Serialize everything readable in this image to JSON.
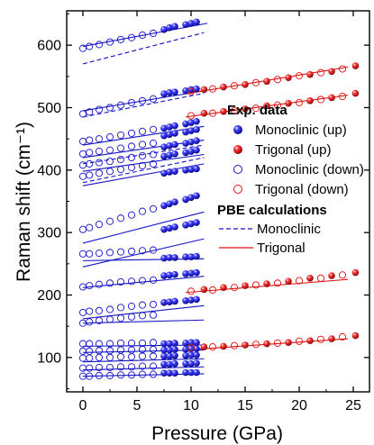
{
  "chart_data": {
    "type": "scatter",
    "xlabel": "Pressure (GPa)",
    "ylabel": "Raman shift (cm⁻¹)",
    "xlim": [
      -1.5,
      26.5
    ],
    "ylim": [
      45,
      655
    ],
    "xticks": [
      0,
      5,
      10,
      15,
      20,
      25
    ],
    "yticks": [
      100,
      200,
      300,
      400,
      500,
      600
    ],
    "grid": false,
    "legend_position": "right",
    "legend": {
      "exp_heading": "Exp. data",
      "calc_heading": "PBE calculations",
      "mono_up": "Monoclinic (up)",
      "trig_up": "Trigonal (up)",
      "mono_down": "Monoclinic (down)",
      "trig_down": "Trigonal  (down)",
      "calc_mono": "Monoclinic",
      "calc_trig": "Trigonal"
    },
    "colors": {
      "monoclinic": "#1515c8",
      "trigonal": "#e01010"
    },
    "series": [
      {
        "name": "Monoclinic (up)",
        "marker": "filled-sphere",
        "color": "#1515c8",
        "x": [
          7.5,
          8.0,
          8.5,
          9.5,
          10.0,
          10.5
        ],
        "y_sets": [
          [
            625,
            628,
            630,
            633,
            635,
            637
          ],
          [
            522,
            524,
            525,
            527,
            529,
            530
          ],
          [
            467,
            469,
            471,
            474,
            476,
            478
          ],
          [
            455,
            457,
            459,
            461,
            463,
            465
          ],
          [
            437,
            439,
            441,
            443,
            445,
            447
          ],
          [
            422,
            424,
            426,
            428,
            430,
            432
          ],
          [
            395,
            397,
            398,
            400,
            401,
            402
          ],
          [
            343,
            346,
            349,
            353,
            356,
            359
          ],
          [
            305,
            307,
            309,
            312,
            314,
            316
          ],
          [
            259,
            260,
            260,
            261,
            261,
            262
          ],
          [
            231,
            232,
            233,
            234,
            235,
            236
          ],
          [
            188,
            189,
            190,
            191,
            192,
            193
          ],
          [
            122,
            122,
            123,
            123,
            124,
            124
          ],
          [
            112,
            112,
            113,
            113,
            114,
            114
          ],
          [
            102,
            102,
            103,
            103,
            104,
            104
          ],
          [
            89,
            89,
            90,
            90,
            90,
            91
          ],
          [
            75,
            75,
            75,
            76,
            76,
            76
          ]
        ]
      },
      {
        "name": "Trigonal (up)",
        "marker": "filled-sphere",
        "color": "#e01010",
        "x": [
          11.2,
          13.0,
          15.0,
          17.0,
          19.0,
          21.0,
          23.0,
          25.2
        ],
        "y_sets": [
          [
            529,
            533,
            537,
            542,
            548,
            553,
            558,
            567
          ],
          [
            491,
            494,
            498,
            503,
            507,
            511,
            516,
            523
          ],
          [
            209,
            212,
            215,
            218,
            222,
            227,
            231,
            236
          ],
          [
            117,
            118,
            120,
            122,
            124,
            127,
            130,
            135
          ]
        ]
      },
      {
        "name": "Monoclinic (down)",
        "marker": "open-circle",
        "color": "#1515c8",
        "x": [
          0.0,
          0.6,
          1.5,
          2.5,
          3.5,
          4.5,
          5.5,
          6.5
        ],
        "y_sets": [
          [
            595,
            598,
            601,
            605,
            609,
            612,
            616,
            619
          ],
          [
            490,
            493,
            497,
            500,
            504,
            508,
            511,
            514
          ],
          [
            446,
            448,
            450,
            453,
            456,
            459,
            462,
            465
          ],
          [
            426,
            428,
            430,
            432,
            435,
            438,
            441,
            443
          ],
          [
            408,
            410,
            412,
            414,
            417,
            420,
            423,
            425
          ],
          [
            390,
            392,
            395,
            398,
            401,
            404,
            407,
            410
          ],
          [
            305,
            308,
            313,
            318,
            323,
            328,
            334,
            338
          ],
          [
            266,
            266,
            267,
            268,
            269,
            270,
            271,
            272
          ],
          [
            213,
            215,
            217,
            219,
            221,
            222,
            223,
            224
          ],
          [
            172,
            174,
            175,
            177,
            180,
            182,
            184,
            185
          ],
          [
            155,
            157,
            159,
            161,
            163,
            165,
            167,
            168
          ],
          [
            122,
            122,
            122,
            122,
            123,
            123,
            123,
            124
          ],
          [
            110,
            110,
            111,
            111,
            112,
            112,
            113,
            113
          ],
          [
            99,
            99,
            100,
            100,
            101,
            101,
            102,
            102
          ],
          [
            83,
            83,
            84,
            84,
            85,
            85,
            86,
            86
          ],
          [
            70,
            70,
            71,
            71,
            72,
            72,
            73,
            73
          ]
        ]
      },
      {
        "name": "Trigonal  (down)",
        "marker": "open-circle",
        "color": "#e01010",
        "x": [
          10.0,
          12.0,
          14.0,
          16.0,
          18.0,
          20.0,
          22.0,
          24.0
        ],
        "y_sets": [
          [
            526,
            530,
            535,
            540,
            545,
            551,
            556,
            562
          ],
          [
            487,
            491,
            495,
            499,
            504,
            508,
            513,
            518
          ],
          [
            206,
            208,
            212,
            216,
            219,
            223,
            227,
            232
          ],
          [
            116,
            117,
            119,
            121,
            123,
            126,
            129,
            133
          ]
        ]
      }
    ],
    "calc_lines": [
      {
        "name": "Monoclinic",
        "style": "solid",
        "color": "#1515c8",
        "x": [
          0,
          11.2
        ],
        "y_pairs": [
          [
            495,
            527
          ],
          [
            440,
            470
          ],
          [
            420,
            448
          ],
          [
            398,
            425
          ],
          [
            375,
            410
          ],
          [
            283,
            333
          ],
          [
            245,
            290
          ],
          [
            255,
            258
          ],
          [
            212,
            230
          ],
          [
            162,
            183
          ],
          [
            155,
            160
          ],
          [
            118,
            120
          ],
          [
            108,
            112
          ],
          [
            93,
            98
          ],
          [
            80,
            85
          ],
          [
            70,
            74
          ]
        ]
      },
      {
        "name": "Monoclinic",
        "style": "dashed",
        "color": "#1515c8",
        "x": [
          0,
          11.2
        ],
        "y_pairs": [
          [
            570,
            620
          ],
          [
            485,
            523
          ],
          [
            410,
            440
          ],
          [
            380,
            420
          ]
        ]
      },
      {
        "name": "Monoclinic",
        "style": "solid",
        "color": "#1515c8",
        "x": [
          0,
          11.5
        ],
        "y_pairs": [
          [
            598,
            635
          ]
        ]
      },
      {
        "name": "Trigonal",
        "style": "solid",
        "color": "#e01010",
        "x": [
          9.5,
          24.5
        ],
        "y_pairs": [
          [
            522,
            565
          ],
          [
            485,
            520
          ],
          [
            204,
            225
          ],
          [
            112,
            130
          ]
        ]
      }
    ]
  }
}
